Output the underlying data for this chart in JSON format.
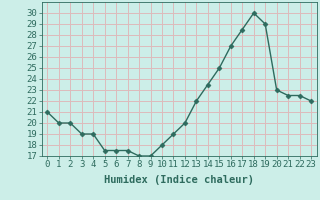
{
  "x": [
    0,
    1,
    2,
    3,
    4,
    5,
    6,
    7,
    8,
    9,
    10,
    11,
    12,
    13,
    14,
    15,
    16,
    17,
    18,
    19,
    20,
    21,
    22,
    23
  ],
  "y": [
    21,
    20,
    20,
    19,
    19,
    17.5,
    17.5,
    17.5,
    17,
    17,
    18,
    19,
    20,
    22,
    23.5,
    25,
    27,
    28.5,
    30,
    29,
    23,
    22.5,
    22.5,
    22
  ],
  "line_color": "#2e6b5e",
  "marker_color": "#2e6b5e",
  "bg_color": "#cceee8",
  "grid_color": "#ddbbbb",
  "xlabel": "Humidex (Indice chaleur)",
  "ylim": [
    17,
    31
  ],
  "xlim": [
    -0.5,
    23.5
  ],
  "yticks": [
    17,
    18,
    19,
    20,
    21,
    22,
    23,
    24,
    25,
    26,
    27,
    28,
    29,
    30
  ],
  "xticks": [
    0,
    1,
    2,
    3,
    4,
    5,
    6,
    7,
    8,
    9,
    10,
    11,
    12,
    13,
    14,
    15,
    16,
    17,
    18,
    19,
    20,
    21,
    22,
    23
  ],
  "tick_fontsize": 6.5,
  "xlabel_fontsize": 7.5
}
